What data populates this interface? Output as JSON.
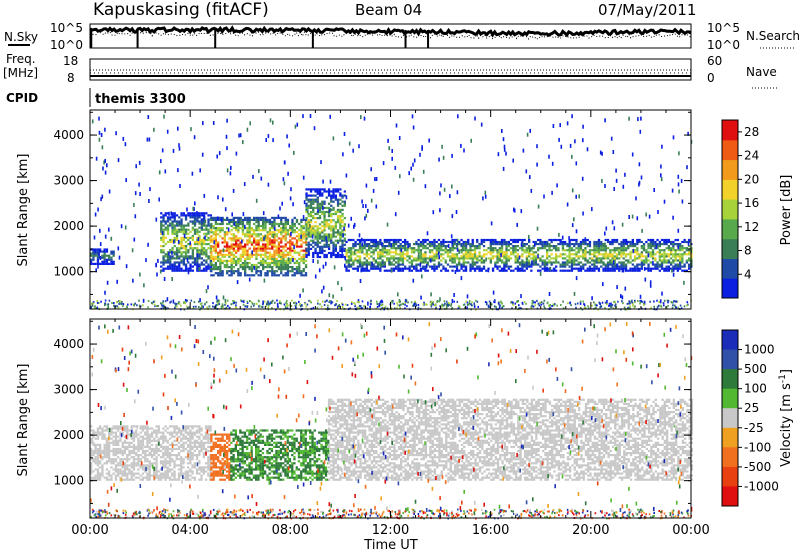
{
  "header": {
    "station": "Kapuskasing (fitACF)",
    "beam": "Beam 04",
    "date": "07/May/2011"
  },
  "strips": {
    "nsky_label": "N.Sky",
    "nsky_ticks": [
      "10^5",
      "10^0"
    ],
    "nsearch_label": "N.Search",
    "nsearch_ticks": [
      "10^5",
      "10^0"
    ],
    "freq_label": "Freq.",
    "freq_unit": "[MHz]",
    "freq_ticks": [
      "18",
      "8"
    ],
    "nave_label": "Nave",
    "nave_ticks": [
      "60",
      "0"
    ],
    "cpid_label": "CPID",
    "cpid_value": "themis 3300"
  },
  "time_axis": {
    "label": "Time UT",
    "ticks": [
      "00:00",
      "04:00",
      "08:00",
      "12:00",
      "16:00",
      "20:00",
      "00:00"
    ]
  },
  "colors": {
    "power": [
      "#0a1fe0",
      "#1f4aa6",
      "#3a7e58",
      "#57a94c",
      "#a7d23a",
      "#f2d22a",
      "#f29a1c",
      "#ef5a14",
      "#e01010"
    ],
    "velocity": [
      "#1a2cb8",
      "#3150a8",
      "#2e7a3a",
      "#52b832",
      "#c8c8c8",
      "#f0a020",
      "#f07020",
      "#e84010",
      "#e01010"
    ]
  },
  "chart_data": [
    {
      "type": "heatmap",
      "name": "power",
      "xlabel": "",
      "ylabel": "Slant Range [km]",
      "xlim": [
        0,
        24
      ],
      "ylim": [
        180,
        4550
      ],
      "yticks": [
        1000,
        2000,
        3000,
        4000
      ],
      "colorbar": {
        "label": "Power [dB]",
        "ticks": [
          4,
          8,
          12,
          16,
          20,
          24,
          28
        ],
        "range": [
          0,
          30
        ]
      },
      "backscatter_bands": [
        {
          "t0": 0.0,
          "t1": 0.9,
          "lo": 1150,
          "hi": 1500,
          "level": "weak"
        },
        {
          "t0": 2.8,
          "t1": 4.8,
          "lo": 1000,
          "hi": 2300,
          "level": "moderate"
        },
        {
          "t0": 4.8,
          "t1": 8.6,
          "lo": 900,
          "hi": 2200,
          "level": "strong"
        },
        {
          "t0": 8.6,
          "t1": 10.2,
          "lo": 1300,
          "hi": 2800,
          "level": "moderate"
        },
        {
          "t0": 10.2,
          "t1": 24.0,
          "lo": 1000,
          "hi": 1700,
          "level": "moderate"
        }
      ]
    },
    {
      "type": "heatmap",
      "name": "velocity",
      "xlabel": "Time UT",
      "ylabel": "Slant Range [km]",
      "xlim": [
        0,
        24
      ],
      "ylim": [
        180,
        4550
      ],
      "yticks": [
        1000,
        2000,
        3000,
        4000
      ],
      "colorbar": {
        "label": "Velocity [m s^-1]",
        "ticks": [
          "1000",
          "500",
          "100",
          "25",
          "-25",
          "-100",
          "-500",
          "-1000"
        ]
      },
      "velocity_regions": [
        {
          "t0": 0.0,
          "t1": 4.8,
          "lo": 1000,
          "hi": 2200,
          "value": 0
        },
        {
          "t0": 4.8,
          "t1": 5.6,
          "lo": 1000,
          "hi": 2000,
          "value": -300
        },
        {
          "t0": 5.6,
          "t1": 9.5,
          "lo": 1000,
          "hi": 2100,
          "value": 150
        },
        {
          "t0": 9.5,
          "t1": 24.0,
          "lo": 1000,
          "hi": 2800,
          "value": 0
        }
      ]
    }
  ]
}
